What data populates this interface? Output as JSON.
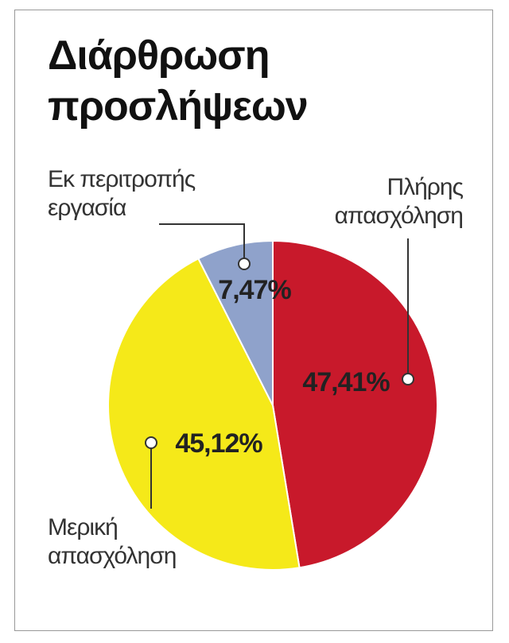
{
  "chart_data": {
    "type": "pie",
    "title": "Διάρθρωση προσλήψεων",
    "categories": [
      "Πλήρης απασχόληση",
      "Μερική απασχόληση",
      "Εκ περιτροπής εργασία"
    ],
    "values": [
      47.41,
      45.12,
      7.47
    ],
    "value_labels": [
      "47,41%",
      "45,12%",
      "7,47%"
    ],
    "colors": [
      "#c8192b",
      "#f5e919",
      "#8fa2cb"
    ]
  }
}
